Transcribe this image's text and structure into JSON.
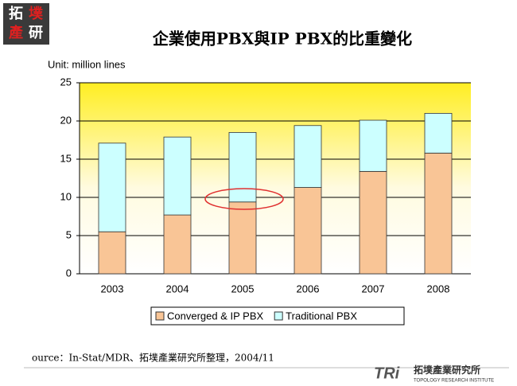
{
  "chart_data": {
    "type": "stacked-bar",
    "title": "企業使用PBX與IP PBX的比重變化",
    "unit_label": "Unit: million lines",
    "categories": [
      "2003",
      "2004",
      "2005",
      "2006",
      "2007",
      "2008"
    ],
    "series": [
      {
        "name": "Converged & IP PBX",
        "color": "#f9c596",
        "values": [
          5.5,
          7.7,
          9.4,
          11.3,
          13.4,
          15.8
        ]
      },
      {
        "name": "Traditional PBX",
        "color": "#ccffff",
        "values": [
          11.6,
          10.2,
          9.1,
          8.1,
          6.7,
          5.2
        ]
      }
    ],
    "ylim": [
      0,
      25
    ],
    "yticks": [
      0,
      5,
      10,
      15,
      20,
      25
    ],
    "grid": true,
    "source": "ource：In-Stat/MDR、拓墣產業研究所整理，2004/11"
  },
  "logo": {
    "top_line1": "拓",
    "top_line1b": "墣",
    "top_line2": "產",
    "top_line2b": "研",
    "footer_mark": "TRi",
    "footer_name": "拓墣產業研究所",
    "footer_sub": "TOPOLOGY RESEARCH INSTITUTE"
  }
}
